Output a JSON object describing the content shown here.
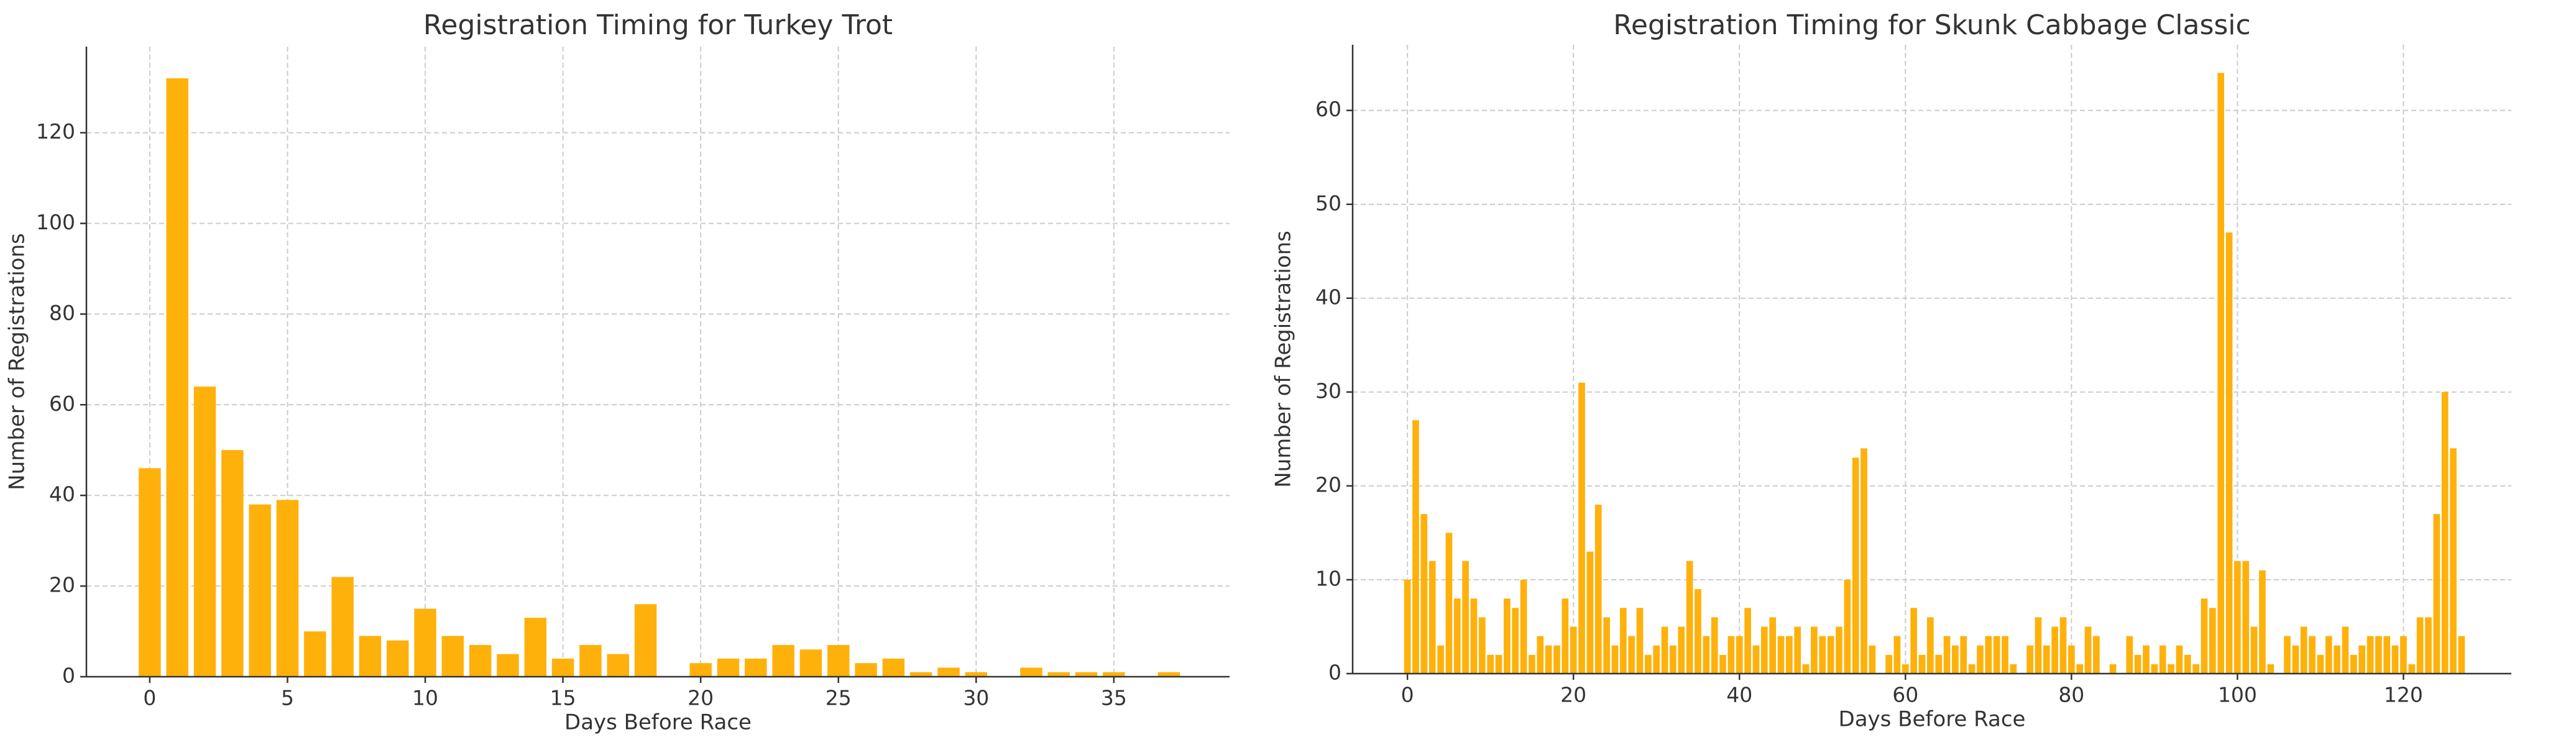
{
  "chart_data": [
    {
      "type": "bar",
      "title": "Registration Timing for Turkey Trot",
      "xlabel": "Days Before Race",
      "ylabel": "Number of Registrations",
      "color": "#ffb10b",
      "grid": true,
      "x": [
        0,
        1,
        2,
        3,
        4,
        5,
        6,
        7,
        8,
        9,
        10,
        11,
        12,
        13,
        14,
        15,
        16,
        17,
        18,
        19,
        20,
        21,
        22,
        23,
        24,
        25,
        26,
        27,
        28,
        29,
        30,
        31,
        32,
        33,
        34,
        35,
        36,
        37
      ],
      "values": [
        46,
        132,
        64,
        50,
        38,
        39,
        10,
        22,
        9,
        8,
        15,
        9,
        7,
        5,
        13,
        4,
        7,
        5,
        16,
        0,
        3,
        4,
        4,
        7,
        6,
        7,
        3,
        4,
        1,
        2,
        1,
        0,
        2,
        1,
        1,
        1,
        0,
        1
      ],
      "xlim": [
        -2.3,
        39.2
      ],
      "ylim": [
        0,
        139
      ],
      "xticks": [
        0,
        5,
        10,
        15,
        20,
        25,
        30,
        35
      ],
      "yticks": [
        0,
        20,
        40,
        60,
        80,
        100,
        120
      ]
    },
    {
      "type": "bar",
      "title": "Registration Timing for Skunk Cabbage Classic",
      "xlabel": "Days Before Race",
      "ylabel": "Number of Registrations",
      "color": "#ffb10b",
      "grid": true,
      "x": [
        0,
        1,
        2,
        3,
        4,
        5,
        6,
        7,
        8,
        9,
        10,
        11,
        12,
        13,
        14,
        15,
        16,
        17,
        18,
        19,
        20,
        21,
        22,
        23,
        24,
        25,
        26,
        27,
        28,
        29,
        30,
        31,
        32,
        33,
        34,
        35,
        36,
        37,
        38,
        39,
        40,
        41,
        42,
        43,
        44,
        45,
        46,
        47,
        48,
        49,
        50,
        51,
        52,
        53,
        54,
        55,
        56,
        57,
        58,
        59,
        60,
        61,
        62,
        63,
        64,
        65,
        66,
        67,
        68,
        69,
        70,
        71,
        72,
        73,
        74,
        75,
        76,
        77,
        78,
        79,
        80,
        81,
        82,
        83,
        84,
        85,
        86,
        87,
        88,
        89,
        90,
        91,
        92,
        93,
        94,
        95,
        96,
        97,
        98,
        99,
        100,
        101,
        102,
        103,
        104,
        105,
        106,
        107,
        108,
        109,
        110,
        111,
        112,
        113,
        114,
        115,
        116,
        117,
        118,
        119,
        120,
        121,
        122,
        123,
        124,
        125,
        126,
        127
      ],
      "values": [
        10,
        27,
        17,
        12,
        3,
        15,
        8,
        12,
        8,
        6,
        2,
        2,
        8,
        7,
        10,
        2,
        4,
        3,
        3,
        8,
        5,
        31,
        13,
        18,
        6,
        3,
        7,
        4,
        7,
        2,
        3,
        5,
        3,
        5,
        12,
        9,
        4,
        6,
        2,
        4,
        4,
        7,
        3,
        5,
        6,
        4,
        4,
        5,
        1,
        5,
        4,
        4,
        5,
        10,
        23,
        24,
        3,
        0,
        2,
        4,
        1,
        7,
        2,
        6,
        2,
        4,
        3,
        4,
        1,
        3,
        4,
        4,
        4,
        1,
        0,
        3,
        6,
        3,
        5,
        6,
        3,
        1,
        5,
        4,
        0,
        1,
        0,
        4,
        2,
        3,
        1,
        3,
        1,
        3,
        2,
        1,
        8,
        7,
        64,
        47,
        12,
        12,
        5,
        11,
        1,
        0,
        4,
        3,
        5,
        4,
        2,
        4,
        3,
        5,
        2,
        3,
        4,
        4,
        4,
        3,
        4,
        1,
        6,
        6,
        17,
        30,
        24,
        4
      ],
      "xlim": [
        -6.6,
        133
      ],
      "ylim": [
        0,
        67
      ],
      "xticks": [
        0,
        20,
        40,
        60,
        80,
        100,
        120
      ],
      "yticks": [
        0,
        10,
        20,
        30,
        40,
        50,
        60
      ]
    }
  ]
}
